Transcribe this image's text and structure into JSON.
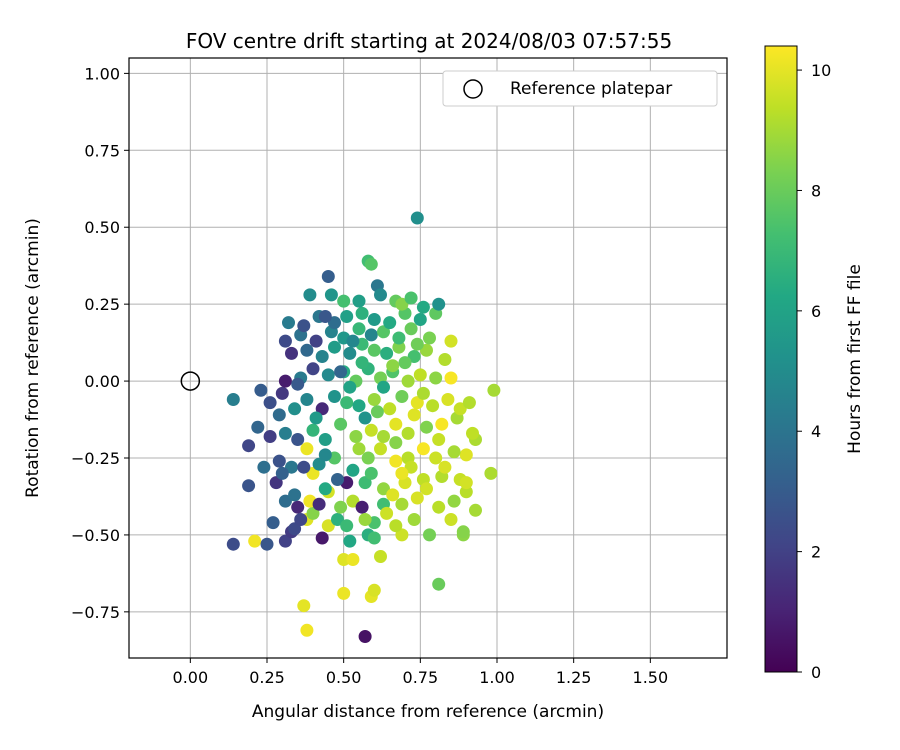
{
  "chart_data": {
    "type": "scatter",
    "title": "FOV centre drift starting at 2024/08/03 07:57:55",
    "xlabel": "Angular distance from reference (arcmin)",
    "ylabel": "Rotation from reference (arcmin)",
    "xlim": [
      -0.2,
      1.75
    ],
    "ylim": [
      -0.9,
      1.05
    ],
    "xticks": [
      0.0,
      0.25,
      0.5,
      0.75,
      1.0,
      1.25,
      1.5
    ],
    "xtick_labels": [
      "0.00",
      "0.25",
      "0.50",
      "0.75",
      "1.00",
      "1.25",
      "1.50"
    ],
    "yticks": [
      -0.75,
      -0.5,
      -0.25,
      0.0,
      0.25,
      0.5,
      0.75,
      1.0
    ],
    "ytick_labels": [
      "−0.75",
      "−0.50",
      "−0.25",
      "0.00",
      "0.25",
      "0.50",
      "0.75",
      "1.00"
    ],
    "grid": true,
    "colormap": "viridis",
    "colorbar": {
      "label": "Hours from first FF file",
      "range": [
        0,
        10.4
      ],
      "ticks": [
        0,
        2,
        4,
        6,
        8,
        10
      ],
      "tick_labels": [
        "0",
        "2",
        "4",
        "6",
        "8",
        "10"
      ]
    },
    "legend": {
      "placement": "top-right",
      "entries": [
        "Reference platepar"
      ]
    },
    "reference_point": {
      "x": 0.0,
      "y": 0.0
    },
    "points": [
      [
        0.57,
        -0.83,
        0.5
      ],
      [
        0.38,
        -0.81,
        10.2
      ],
      [
        0.37,
        -0.73,
        10.0
      ],
      [
        0.5,
        -0.69,
        10.1
      ],
      [
        0.59,
        -0.7,
        10.0
      ],
      [
        0.6,
        -0.68,
        9.8
      ],
      [
        0.81,
        -0.66,
        8.0
      ],
      [
        0.5,
        -0.58,
        9.9
      ],
      [
        0.53,
        -0.58,
        10.1
      ],
      [
        0.62,
        -0.57,
        9.5
      ],
      [
        0.14,
        -0.53,
        2.4
      ],
      [
        0.21,
        -0.52,
        10.2
      ],
      [
        0.25,
        -0.53,
        2.8
      ],
      [
        0.31,
        -0.52,
        2.0
      ],
      [
        0.33,
        -0.49,
        1.8
      ],
      [
        0.43,
        -0.51,
        0.7
      ],
      [
        0.52,
        -0.52,
        6.2
      ],
      [
        0.58,
        -0.5,
        6.5
      ],
      [
        0.6,
        -0.51,
        7.2
      ],
      [
        0.69,
        -0.5,
        9.6
      ],
      [
        0.78,
        -0.5,
        8.2
      ],
      [
        0.89,
        -0.5,
        8.6
      ],
      [
        0.27,
        -0.46,
        3.1
      ],
      [
        0.34,
        -0.48,
        2.3
      ],
      [
        0.38,
        -0.45,
        9.9
      ],
      [
        0.4,
        -0.43,
        8.5
      ],
      [
        0.45,
        -0.47,
        9.8
      ],
      [
        0.48,
        -0.45,
        6.6
      ],
      [
        0.6,
        -0.46,
        7.4
      ],
      [
        0.67,
        -0.47,
        9.3
      ],
      [
        0.73,
        -0.45,
        8.9
      ],
      [
        0.85,
        -0.45,
        9.6
      ],
      [
        0.89,
        -0.49,
        8.5
      ],
      [
        0.31,
        -0.39,
        3.7
      ],
      [
        0.35,
        -0.41,
        1.2
      ],
      [
        0.39,
        -0.39,
        10.2
      ],
      [
        0.45,
        -0.36,
        9.7
      ],
      [
        0.49,
        -0.41,
        8.4
      ],
      [
        0.53,
        -0.39,
        9.2
      ],
      [
        0.56,
        -0.41,
        0.9
      ],
      [
        0.63,
        -0.4,
        7.2
      ],
      [
        0.69,
        -0.4,
        9.0
      ],
      [
        0.74,
        -0.38,
        9.8
      ],
      [
        0.81,
        -0.41,
        9.3
      ],
      [
        0.86,
        -0.39,
        8.7
      ],
      [
        0.9,
        -0.36,
        9.3
      ],
      [
        0.93,
        -0.42,
        9.0
      ],
      [
        0.19,
        -0.34,
        2.7
      ],
      [
        0.28,
        -0.33,
        1.6
      ],
      [
        0.34,
        -0.37,
        3.9
      ],
      [
        0.4,
        -0.3,
        10.1
      ],
      [
        0.44,
        -0.35,
        6.3
      ],
      [
        0.51,
        -0.33,
        0.8
      ],
      [
        0.57,
        -0.33,
        7.1
      ],
      [
        0.63,
        -0.35,
        8.7
      ],
      [
        0.7,
        -0.33,
        9.8
      ],
      [
        0.76,
        -0.32,
        9.4
      ],
      [
        0.82,
        -0.31,
        9.2
      ],
      [
        0.88,
        -0.32,
        9.5
      ],
      [
        0.9,
        -0.33,
        9.7
      ],
      [
        0.98,
        -0.3,
        9.1
      ],
      [
        0.24,
        -0.28,
        3.8
      ],
      [
        0.29,
        -0.26,
        2.6
      ],
      [
        0.33,
        -0.28,
        4.1
      ],
      [
        0.38,
        -0.22,
        10.1
      ],
      [
        0.42,
        -0.27,
        5.0
      ],
      [
        0.47,
        -0.25,
        7.6
      ],
      [
        0.53,
        -0.29,
        6.1
      ],
      [
        0.58,
        -0.25,
        8.3
      ],
      [
        0.62,
        -0.22,
        9.5
      ],
      [
        0.67,
        -0.26,
        10.2
      ],
      [
        0.71,
        -0.25,
        9.3
      ],
      [
        0.76,
        -0.22,
        10.3
      ],
      [
        0.8,
        -0.25,
        9.6
      ],
      [
        0.83,
        -0.28,
        9.8
      ],
      [
        0.9,
        -0.24,
        9.9
      ],
      [
        0.93,
        -0.19,
        9.1
      ],
      [
        0.19,
        -0.21,
        2.2
      ],
      [
        0.22,
        -0.15,
        3.4
      ],
      [
        0.26,
        -0.18,
        1.9
      ],
      [
        0.31,
        -0.17,
        4.4
      ],
      [
        0.35,
        -0.19,
        2.7
      ],
      [
        0.4,
        -0.16,
        6.8
      ],
      [
        0.44,
        -0.19,
        5.8
      ],
      [
        0.49,
        -0.14,
        7.7
      ],
      [
        0.54,
        -0.18,
        8.6
      ],
      [
        0.59,
        -0.16,
        9.5
      ],
      [
        0.63,
        -0.18,
        9.0
      ],
      [
        0.67,
        -0.14,
        10.0
      ],
      [
        0.71,
        -0.17,
        9.2
      ],
      [
        0.77,
        -0.15,
        8.4
      ],
      [
        0.82,
        -0.14,
        10.3
      ],
      [
        0.87,
        -0.12,
        9.0
      ],
      [
        0.92,
        -0.17,
        9.4
      ],
      [
        0.14,
        -0.06,
        4.4
      ],
      [
        0.23,
        -0.03,
        3.0
      ],
      [
        0.26,
        -0.07,
        2.5
      ],
      [
        0.3,
        -0.04,
        1.7
      ],
      [
        0.34,
        -0.09,
        5.1
      ],
      [
        0.38,
        -0.06,
        4.7
      ],
      [
        0.43,
        -0.09,
        1.2
      ],
      [
        0.47,
        -0.05,
        5.3
      ],
      [
        0.51,
        -0.07,
        7.0
      ],
      [
        0.55,
        -0.08,
        6.2
      ],
      [
        0.6,
        -0.06,
        8.8
      ],
      [
        0.65,
        -0.09,
        9.4
      ],
      [
        0.69,
        -0.05,
        8.1
      ],
      [
        0.74,
        -0.07,
        10.0
      ],
      [
        0.79,
        -0.08,
        9.3
      ],
      [
        0.84,
        -0.06,
        9.8
      ],
      [
        0.88,
        -0.09,
        9.5
      ],
      [
        0.91,
        -0.07,
        9.2
      ],
      [
        0.99,
        -0.03,
        9.0
      ],
      [
        0.31,
        0.0,
        0.8
      ],
      [
        0.36,
        0.01,
        4.3
      ],
      [
        0.4,
        0.04,
        2.1
      ],
      [
        0.45,
        0.02,
        4.9
      ],
      [
        0.5,
        0.03,
        6.4
      ],
      [
        0.54,
        0.0,
        7.9
      ],
      [
        0.58,
        0.04,
        6.7
      ],
      [
        0.62,
        0.01,
        8.2
      ],
      [
        0.66,
        0.03,
        7.5
      ],
      [
        0.71,
        0.0,
        8.9
      ],
      [
        0.75,
        0.02,
        9.4
      ],
      [
        0.8,
        0.01,
        8.6
      ],
      [
        0.85,
        0.01,
        10.3
      ],
      [
        0.33,
        0.09,
        1.5
      ],
      [
        0.38,
        0.1,
        3.5
      ],
      [
        0.43,
        0.08,
        4.6
      ],
      [
        0.47,
        0.11,
        5.7
      ],
      [
        0.52,
        0.09,
        5.0
      ],
      [
        0.56,
        0.12,
        7.0
      ],
      [
        0.6,
        0.1,
        7.7
      ],
      [
        0.64,
        0.09,
        6.5
      ],
      [
        0.68,
        0.11,
        8.4
      ],
      [
        0.73,
        0.08,
        7.3
      ],
      [
        0.77,
        0.1,
        8.8
      ],
      [
        0.83,
        0.07,
        9.2
      ],
      [
        0.31,
        0.13,
        2.3
      ],
      [
        0.36,
        0.15,
        3.9
      ],
      [
        0.41,
        0.13,
        2.0
      ],
      [
        0.46,
        0.16,
        4.6
      ],
      [
        0.5,
        0.14,
        5.5
      ],
      [
        0.55,
        0.17,
        6.9
      ],
      [
        0.59,
        0.15,
        4.7
      ],
      [
        0.63,
        0.16,
        7.6
      ],
      [
        0.68,
        0.14,
        7.1
      ],
      [
        0.72,
        0.17,
        8.0
      ],
      [
        0.78,
        0.14,
        8.3
      ],
      [
        0.85,
        0.13,
        9.7
      ],
      [
        0.32,
        0.19,
        4.3
      ],
      [
        0.37,
        0.18,
        2.6
      ],
      [
        0.42,
        0.21,
        4.1
      ],
      [
        0.47,
        0.19,
        3.7
      ],
      [
        0.51,
        0.21,
        5.9
      ],
      [
        0.56,
        0.22,
        6.6
      ],
      [
        0.6,
        0.2,
        5.6
      ],
      [
        0.65,
        0.19,
        6.3
      ],
      [
        0.7,
        0.22,
        7.6
      ],
      [
        0.75,
        0.2,
        6.1
      ],
      [
        0.8,
        0.22,
        7.8
      ],
      [
        0.39,
        0.28,
        5.0
      ],
      [
        0.45,
        0.34,
        3.1
      ],
      [
        0.46,
        0.28,
        5.4
      ],
      [
        0.5,
        0.26,
        7.3
      ],
      [
        0.55,
        0.26,
        5.8
      ],
      [
        0.58,
        0.39,
        7.2
      ],
      [
        0.59,
        0.38,
        7.6
      ],
      [
        0.61,
        0.31,
        4.1
      ],
      [
        0.62,
        0.28,
        4.9
      ],
      [
        0.67,
        0.26,
        7.9
      ],
      [
        0.69,
        0.25,
        8.5
      ],
      [
        0.72,
        0.27,
        7.4
      ],
      [
        0.76,
        0.24,
        6.3
      ],
      [
        0.81,
        0.25,
        5.2
      ],
      [
        0.74,
        0.53,
        5.1
      ],
      [
        0.44,
        0.21,
        2.8
      ],
      [
        0.53,
        0.13,
        4.8
      ],
      [
        0.49,
        0.03,
        3.4
      ],
      [
        0.57,
        -0.12,
        5.3
      ],
      [
        0.63,
        -0.02,
        6.1
      ],
      [
        0.7,
        0.06,
        7.9
      ],
      [
        0.74,
        0.12,
        8.1
      ],
      [
        0.67,
        -0.2,
        8.5
      ],
      [
        0.72,
        -0.28,
        9.5
      ],
      [
        0.77,
        -0.35,
        9.7
      ],
      [
        0.66,
        -0.37,
        9.9
      ],
      [
        0.59,
        -0.3,
        7.4
      ],
      [
        0.55,
        -0.22,
        8.9
      ],
      [
        0.48,
        -0.32,
        3.3
      ],
      [
        0.44,
        -0.24,
        4.8
      ],
      [
        0.37,
        -0.28,
        2.4
      ],
      [
        0.29,
        -0.11,
        3.6
      ],
      [
        0.35,
        -0.01,
        2.9
      ],
      [
        0.41,
        -0.12,
        5.6
      ],
      [
        0.52,
        -0.02,
        6.0
      ],
      [
        0.56,
        0.06,
        6.8
      ],
      [
        0.61,
        -0.1,
        8.0
      ],
      [
        0.66,
        0.05,
        8.6
      ],
      [
        0.76,
        -0.04,
        9.1
      ],
      [
        0.81,
        -0.19,
        9.5
      ],
      [
        0.86,
        -0.23,
        9.0
      ],
      [
        0.73,
        -0.11,
        9.9
      ],
      [
        0.69,
        -0.3,
        10.1
      ],
      [
        0.64,
        -0.43,
        9.6
      ],
      [
        0.57,
        -0.45,
        8.8
      ],
      [
        0.51,
        -0.47,
        7.0
      ],
      [
        0.42,
        -0.4,
        1.3
      ],
      [
        0.36,
        -0.45,
        2.2
      ],
      [
        0.3,
        -0.3,
        3.2
      ]
    ]
  }
}
